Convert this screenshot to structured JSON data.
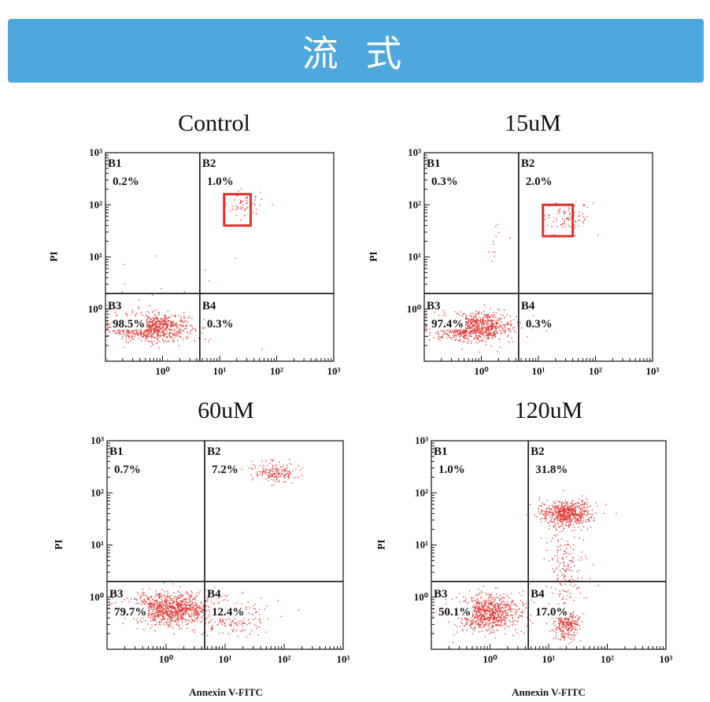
{
  "header": {
    "title": "流 式"
  },
  "colors": {
    "banner": "#4fa8dd",
    "dots": "#e0302b",
    "highlight": "#e0302b"
  },
  "axis_labels": {
    "y": "PI",
    "x": "Annexin V-FITC"
  },
  "chart_data": [
    {
      "type": "scatter",
      "title": "Control",
      "ylabel": "PI",
      "xlabel": "",
      "x_scale": "log",
      "y_scale": "log",
      "xlim": [
        0.1,
        1000
      ],
      "ylim": [
        0.1,
        1000
      ],
      "x_ticks": [
        "10⁰",
        "10¹",
        "10²",
        "10³"
      ],
      "y_ticks": [
        "10⁰",
        "10¹",
        "10²",
        "10³"
      ],
      "gate": {
        "x": 4.5,
        "y": 2
      },
      "quadrants": [
        {
          "name": "B1",
          "percent": "0.2%"
        },
        {
          "name": "B2",
          "percent": "1.0%"
        },
        {
          "name": "B3",
          "percent": "98.5%"
        },
        {
          "name": "B4",
          "percent": "0.3%"
        }
      ],
      "highlight_box": {
        "x": [
          12,
          35
        ],
        "y": [
          40,
          160
        ]
      },
      "clusters": [
        {
          "cx": 0.6,
          "cy": 0.45,
          "sx": 0.35,
          "sy": 0.13,
          "n": 900
        },
        {
          "cx": 28,
          "cy": 100,
          "sx": 0.18,
          "sy": 0.13,
          "n": 60
        },
        {
          "cx": 2,
          "cy": 1,
          "sx": 0.7,
          "sy": 0.7,
          "n": 25
        }
      ]
    },
    {
      "type": "scatter",
      "title": "15uM",
      "ylabel": "PI",
      "xlabel": "",
      "x_scale": "log",
      "y_scale": "log",
      "xlim": [
        0.1,
        1000
      ],
      "ylim": [
        0.1,
        1000
      ],
      "x_ticks": [
        "10⁰",
        "10¹",
        "10²",
        "10³"
      ],
      "y_ticks": [
        "10⁰",
        "10¹",
        "10²",
        "10³"
      ],
      "gate": {
        "x": 4.5,
        "y": 2
      },
      "quadrants": [
        {
          "name": "B1",
          "percent": "0.3%"
        },
        {
          "name": "B2",
          "percent": "2.0%"
        },
        {
          "name": "B3",
          "percent": "97.4%"
        },
        {
          "name": "B4",
          "percent": "0.3%"
        }
      ],
      "highlight_box": {
        "x": [
          12,
          40
        ],
        "y": [
          25,
          100
        ]
      },
      "clusters": [
        {
          "cx": 0.7,
          "cy": 0.45,
          "sx": 0.35,
          "sy": 0.13,
          "n": 900
        },
        {
          "cx": 35,
          "cy": 60,
          "sx": 0.2,
          "sy": 0.15,
          "n": 90
        },
        {
          "cx": 2,
          "cy": 15,
          "sx": 0.1,
          "sy": 0.25,
          "n": 12
        }
      ]
    },
    {
      "type": "scatter",
      "title": "60uM",
      "ylabel": "PI",
      "xlabel": "Annexin V-FITC",
      "x_scale": "log",
      "y_scale": "log",
      "xlim": [
        0.1,
        1000
      ],
      "ylim": [
        0.1,
        1000
      ],
      "x_ticks": [
        "10⁰",
        "10¹",
        "10²",
        "10³"
      ],
      "y_ticks": [
        "10⁰",
        "10¹",
        "10²",
        "10³"
      ],
      "gate": {
        "x": 4.5,
        "y": 2
      },
      "quadrants": [
        {
          "name": "B1",
          "percent": "0.7%"
        },
        {
          "name": "B2",
          "percent": "7.2%"
        },
        {
          "name": "B3",
          "percent": "79.7%"
        },
        {
          "name": "B4",
          "percent": "12.4%"
        }
      ],
      "clusters": [
        {
          "cx": 1.1,
          "cy": 0.6,
          "sx": 0.35,
          "sy": 0.15,
          "n": 1000
        },
        {
          "cx": 12,
          "cy": 0.4,
          "sx": 0.35,
          "sy": 0.2,
          "n": 200
        },
        {
          "cx": 70,
          "cy": 250,
          "sx": 0.18,
          "sy": 0.1,
          "n": 180
        }
      ]
    },
    {
      "type": "scatter",
      "title": "120uM",
      "ylabel": "PI",
      "xlabel": "Annexin V-FITC",
      "x_scale": "log",
      "y_scale": "log",
      "xlim": [
        0.1,
        1000
      ],
      "ylim": [
        0.1,
        1000
      ],
      "x_ticks": [
        "10⁰",
        "10¹",
        "10²",
        "10³"
      ],
      "y_ticks": [
        "10⁰",
        "10¹",
        "10²",
        "10³"
      ],
      "gate": {
        "x": 4.5,
        "y": 2
      },
      "quadrants": [
        {
          "name": "B1",
          "percent": "1.0%"
        },
        {
          "name": "B2",
          "percent": "31.8%"
        },
        {
          "name": "B3",
          "percent": "50.1%"
        },
        {
          "name": "B4",
          "percent": "17.0%"
        }
      ],
      "clusters": [
        {
          "cx": 0.9,
          "cy": 0.5,
          "sx": 0.3,
          "sy": 0.18,
          "n": 800
        },
        {
          "cx": 20,
          "cy": 0.3,
          "sx": 0.12,
          "sy": 0.15,
          "n": 280
        },
        {
          "cx": 20,
          "cy": 40,
          "sx": 0.22,
          "sy": 0.12,
          "n": 600
        },
        {
          "cx": 20,
          "cy": 4,
          "sx": 0.15,
          "sy": 0.5,
          "n": 200
        }
      ]
    }
  ]
}
